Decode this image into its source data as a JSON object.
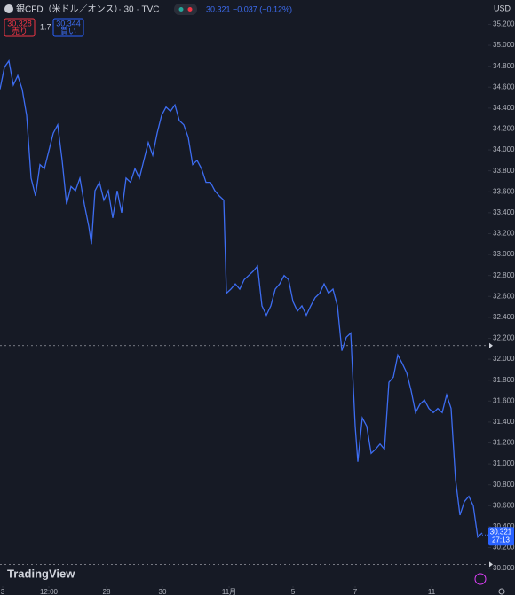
{
  "header": {
    "symbol": "銀CFD（米ドル／オンス）· 30 · TVC",
    "last": "30.321",
    "change": "−0.037 (−0.12%)",
    "sell_price": "30.328",
    "sell_label": "売り",
    "spread": "1.7",
    "buy_price": "30.344",
    "buy_label": "買い",
    "currency": "USD",
    "logo": "TradingView"
  },
  "chart_data": {
    "type": "line",
    "x": [
      0,
      5,
      10,
      15,
      20,
      25,
      30,
      35,
      40,
      45,
      50,
      55,
      60,
      65,
      70,
      75,
      80,
      85,
      90,
      95,
      100,
      103,
      107,
      112,
      117,
      122,
      127,
      132,
      137,
      142,
      147,
      152,
      157,
      162,
      167,
      172,
      177,
      182,
      187,
      192,
      197,
      202,
      207,
      212,
      217,
      222,
      227,
      232,
      237,
      242,
      247,
      252,
      255,
      260,
      265,
      270,
      275,
      280,
      285,
      290,
      295,
      300,
      305,
      310,
      315,
      320,
      325,
      330,
      335,
      340,
      345,
      350,
      355,
      360,
      365,
      370,
      375,
      380,
      385,
      390,
      395,
      400,
      403,
      408,
      413,
      418,
      423,
      428,
      433,
      438,
      443,
      448,
      453,
      458,
      463,
      468,
      473,
      478,
      483,
      488,
      493,
      498,
      503,
      508,
      513,
      518,
      523,
      528,
      533,
      538,
      543
    ],
    "series": [
      {
        "name": "銀CFD",
        "color": "#3d6df2",
        "values": [
          34.58,
          34.79,
          34.85,
          34.62,
          34.71,
          34.58,
          34.33,
          33.73,
          33.56,
          33.86,
          33.82,
          33.99,
          34.16,
          34.24,
          33.9,
          33.48,
          33.65,
          33.61,
          33.73,
          33.48,
          33.27,
          33.1,
          33.61,
          33.69,
          33.52,
          33.61,
          33.35,
          33.61,
          33.4,
          33.73,
          33.69,
          33.82,
          33.73,
          33.9,
          34.07,
          33.95,
          34.16,
          34.33,
          34.41,
          34.37,
          34.43,
          34.28,
          34.24,
          34.12,
          33.86,
          33.9,
          33.82,
          33.69,
          33.69,
          33.61,
          33.56,
          33.52,
          32.63,
          32.67,
          32.72,
          32.67,
          32.76,
          32.8,
          32.84,
          32.89,
          32.51,
          32.42,
          32.51,
          32.67,
          32.72,
          32.8,
          32.76,
          32.55,
          32.46,
          32.51,
          32.42,
          32.51,
          32.59,
          32.63,
          32.72,
          32.63,
          32.67,
          32.51,
          32.08,
          32.21,
          32.25,
          31.36,
          31.02,
          31.44,
          31.36,
          31.1,
          31.14,
          31.19,
          31.14,
          31.78,
          31.83,
          32.04,
          31.96,
          31.87,
          31.7,
          31.49,
          31.57,
          31.61,
          31.53,
          31.49,
          31.53,
          31.49,
          31.66,
          31.53,
          30.85,
          30.51,
          30.64,
          30.69,
          30.6,
          30.3,
          30.34
        ]
      }
    ],
    "xlim": [
      0,
      548
    ],
    "xticks": [
      {
        "value": 3,
        "label": "3"
      },
      {
        "value": 55,
        "label": "12:00"
      },
      {
        "value": 120,
        "label": "28"
      },
      {
        "value": 183,
        "label": "30"
      },
      {
        "value": 258,
        "label": "11月"
      },
      {
        "value": 330,
        "label": "5"
      },
      {
        "value": 400,
        "label": "7"
      },
      {
        "value": 486,
        "label": "11"
      }
    ],
    "ylim": [
      29.84,
      35.28
    ],
    "yticks": [
      {
        "value": 30,
        "label": "30.000"
      },
      {
        "value": 30.2,
        "label": "30.200"
      },
      {
        "value": 30.4,
        "label": "30.400"
      },
      {
        "value": 30.6,
        "label": "30.600"
      },
      {
        "value": 30.8,
        "label": "30.800"
      },
      {
        "value": 31,
        "label": "31.000"
      },
      {
        "value": 31.2,
        "label": "31.200"
      },
      {
        "value": 31.4,
        "label": "31.400"
      },
      {
        "value": 31.6,
        "label": "31.600"
      },
      {
        "value": 31.8,
        "label": "31.800"
      },
      {
        "value": 32,
        "label": "32.000"
      },
      {
        "value": 32.2,
        "label": "32.200"
      },
      {
        "value": 32.4,
        "label": "32.400"
      },
      {
        "value": 32.6,
        "label": "32.600"
      },
      {
        "value": 32.8,
        "label": "32.800"
      },
      {
        "value": 33,
        "label": "33.000"
      },
      {
        "value": 33.2,
        "label": "33.200"
      },
      {
        "value": 33.4,
        "label": "33.400"
      },
      {
        "value": 33.6,
        "label": "33.600"
      },
      {
        "value": 33.8,
        "label": "33.800"
      },
      {
        "value": 34,
        "label": "34.000"
      },
      {
        "value": 34.2,
        "label": "34.200"
      },
      {
        "value": 34.4,
        "label": "34.400"
      },
      {
        "value": 34.6,
        "label": "34.600"
      },
      {
        "value": 34.8,
        "label": "34.800"
      },
      {
        "value": 35,
        "label": "35.000"
      },
      {
        "value": 35.2,
        "label": "35.200"
      }
    ],
    "dashed_lines": [
      32.13,
      30.04
    ],
    "last_price": {
      "value": 30.321,
      "label": "30.321",
      "countdown": "27:13"
    }
  }
}
